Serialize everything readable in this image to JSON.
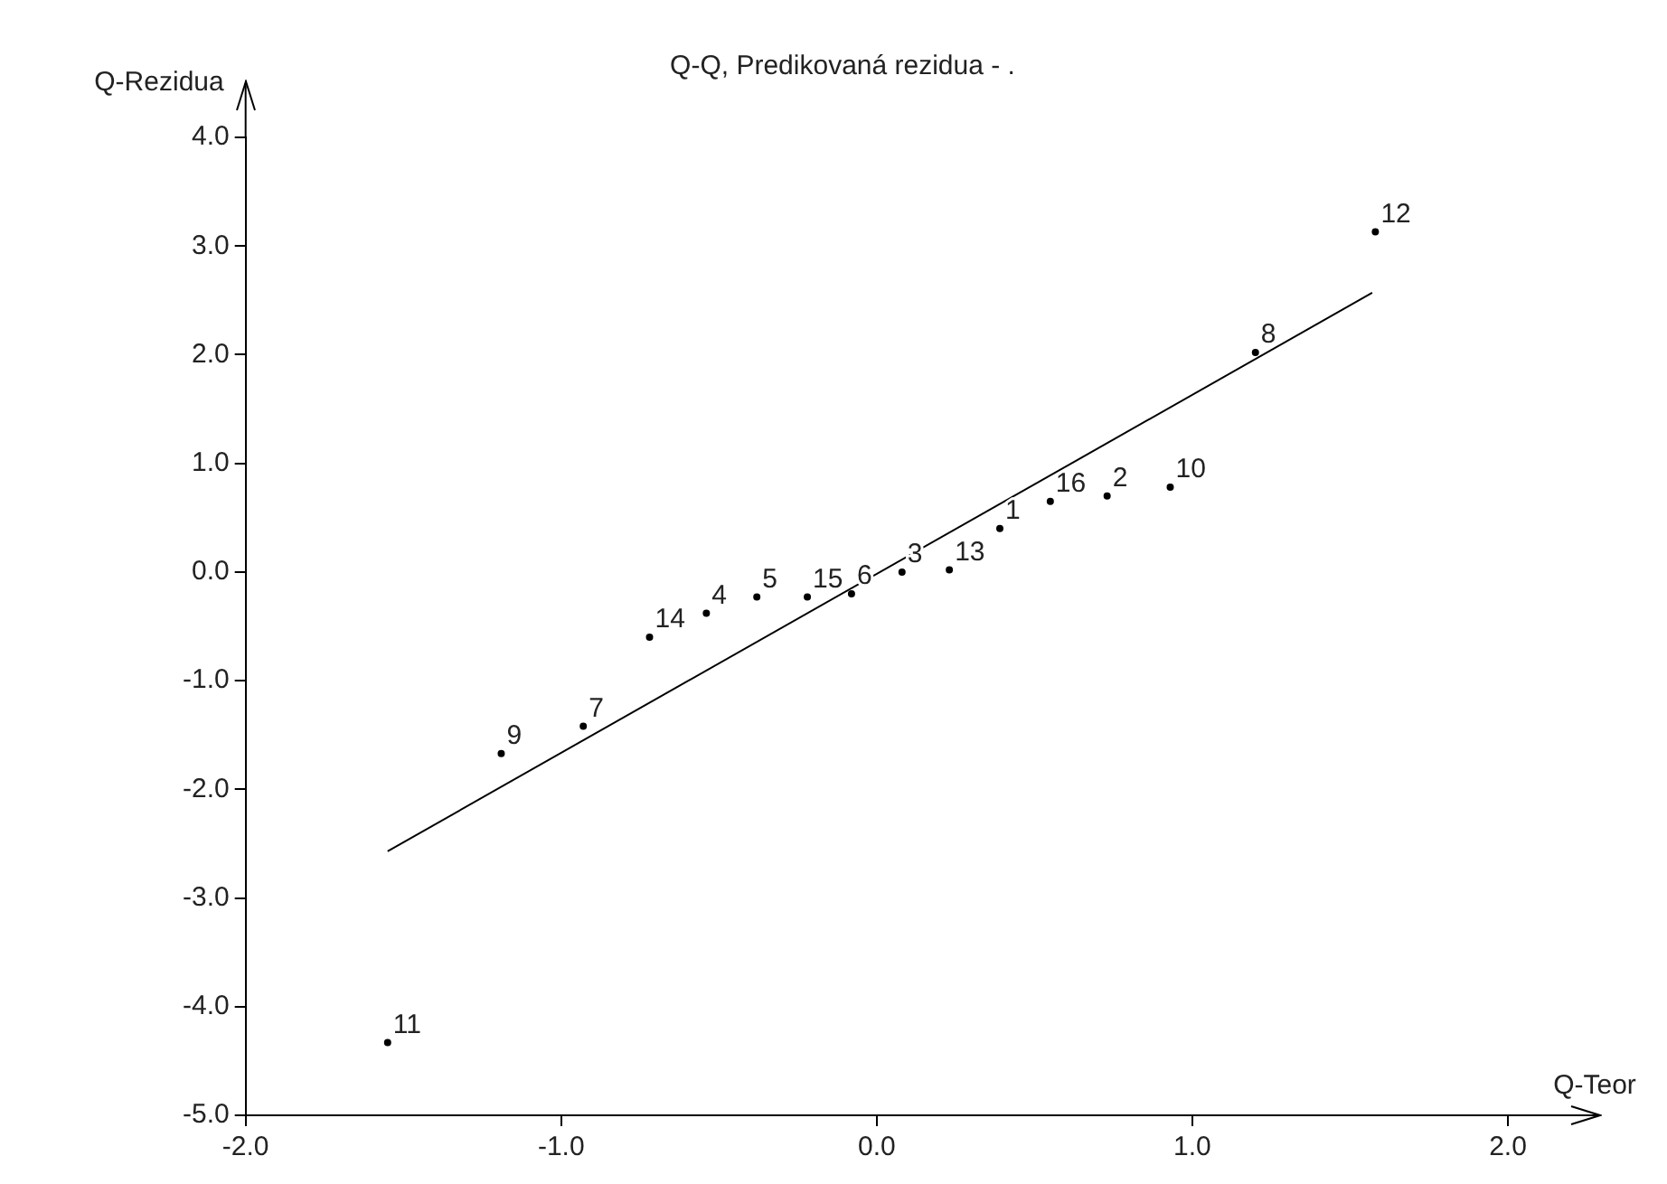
{
  "chart_data": {
    "type": "scatter",
    "title": "Q-Q, Predikovaná rezidua - .",
    "xlabel": "Q-Teor",
    "ylabel": "Q-Rezidua",
    "series": [
      {
        "type": "scatter",
        "color": "#000000",
        "marker": "circle",
        "x": [
          -1.55,
          -1.19,
          -0.93,
          -0.72,
          -0.54,
          -0.38,
          -0.22,
          -0.08,
          0.08,
          0.23,
          0.39,
          0.55,
          0.73,
          0.93,
          1.2,
          1.58
        ],
        "values": [
          -4.33,
          -1.67,
          -1.42,
          -0.6,
          -0.38,
          -0.23,
          -0.23,
          -0.2,
          0.0,
          0.02,
          0.4,
          0.65,
          0.7,
          0.78,
          2.02,
          3.13
        ]
      },
      {
        "type": "line",
        "color": "#000000",
        "marker": "none",
        "line_style": "solid",
        "x": [
          -1.55,
          1.57
        ],
        "values": [
          -2.57,
          2.57
        ]
      }
    ],
    "annotations": [
      {
        "text": "11",
        "x": -1.55,
        "y": -4.33
      },
      {
        "text": "9",
        "x": -1.19,
        "y": -1.67
      },
      {
        "text": "7",
        "x": -0.93,
        "y": -1.42
      },
      {
        "text": "14",
        "x": -0.72,
        "y": -0.6
      },
      {
        "text": "4",
        "x": -0.54,
        "y": -0.38
      },
      {
        "text": "5",
        "x": -0.38,
        "y": -0.23
      },
      {
        "text": "15",
        "x": -0.22,
        "y": -0.23
      },
      {
        "text": "6",
        "x": -0.08,
        "y": -0.2
      },
      {
        "text": "3",
        "x": 0.08,
        "y": 0.0
      },
      {
        "text": "13",
        "x": 0.23,
        "y": 0.02
      },
      {
        "text": "1",
        "x": 0.39,
        "y": 0.4
      },
      {
        "text": "16",
        "x": 0.55,
        "y": 0.65
      },
      {
        "text": "2",
        "x": 0.73,
        "y": 0.7
      },
      {
        "text": "10",
        "x": 0.93,
        "y": 0.78
      },
      {
        "text": "8",
        "x": 1.2,
        "y": 2.02
      },
      {
        "text": "12",
        "x": 1.58,
        "y": 3.13
      }
    ],
    "xlim": [
      -2,
      2
    ],
    "ylim": [
      -5,
      4
    ],
    "xticks": [
      {
        "value": -2,
        "label": "-2.0"
      },
      {
        "value": -1,
        "label": "-1.0"
      },
      {
        "value": 0,
        "label": "0.0"
      },
      {
        "value": 1,
        "label": "1.0"
      },
      {
        "value": 2,
        "label": "2.0"
      }
    ],
    "yticks": [
      {
        "value": -5,
        "label": "-5.0"
      },
      {
        "value": -4,
        "label": "-4.0"
      },
      {
        "value": -3,
        "label": "-3.0"
      },
      {
        "value": -2,
        "label": "-2.0"
      },
      {
        "value": -1,
        "label": "-1.0"
      },
      {
        "value": 0,
        "label": "0.0"
      },
      {
        "value": 1,
        "label": "1.0"
      },
      {
        "value": 2,
        "label": "2.0"
      },
      {
        "value": 3,
        "label": "3.0"
      },
      {
        "value": 4,
        "label": "4.0"
      }
    ],
    "grid": false,
    "legend": false
  }
}
